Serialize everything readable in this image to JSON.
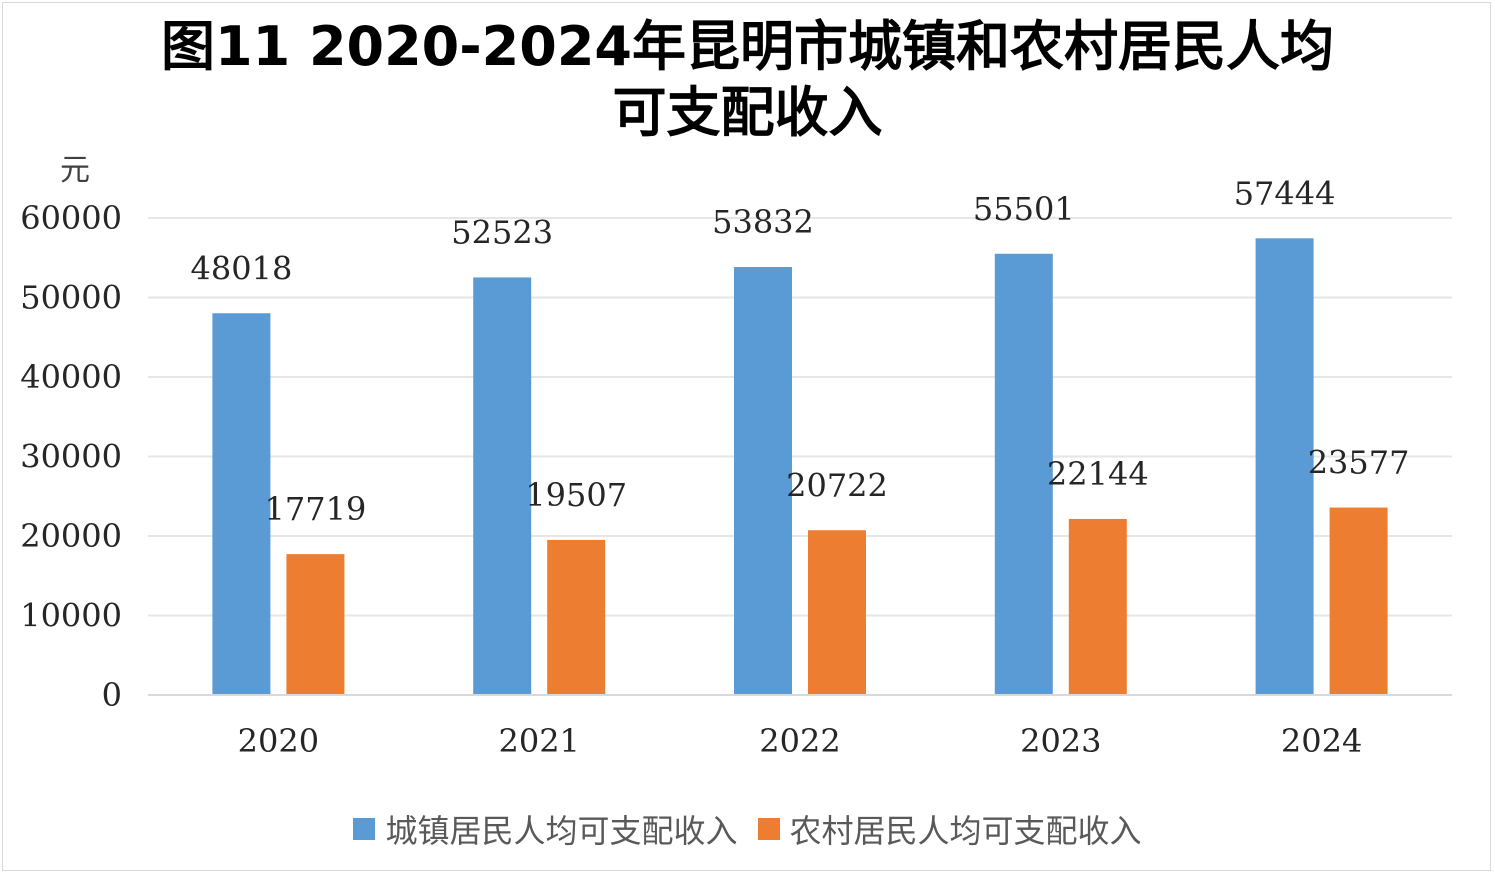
{
  "chart_data": {
    "type": "bar",
    "title_line1": "图11 2020-2024年昆明市城镇和农村居民人均",
    "title_line2": "可支配收入",
    "ylabel": "元",
    "xlabel": "",
    "ylim": [
      0,
      60000
    ],
    "yticks": [
      0,
      10000,
      20000,
      30000,
      40000,
      50000,
      60000
    ],
    "grid": true,
    "legend_position": "bottom",
    "categories": [
      "2020",
      "2021",
      "2022",
      "2023",
      "2024"
    ],
    "series": [
      {
        "name": "城镇居民人均可支配收入",
        "color": "#5b9bd5",
        "values": [
          48018,
          52523,
          53832,
          55501,
          57444
        ]
      },
      {
        "name": "农村居民人均可支配收入",
        "color": "#ed7d31",
        "values": [
          17719,
          19507,
          20722,
          22144,
          23577
        ]
      }
    ]
  }
}
